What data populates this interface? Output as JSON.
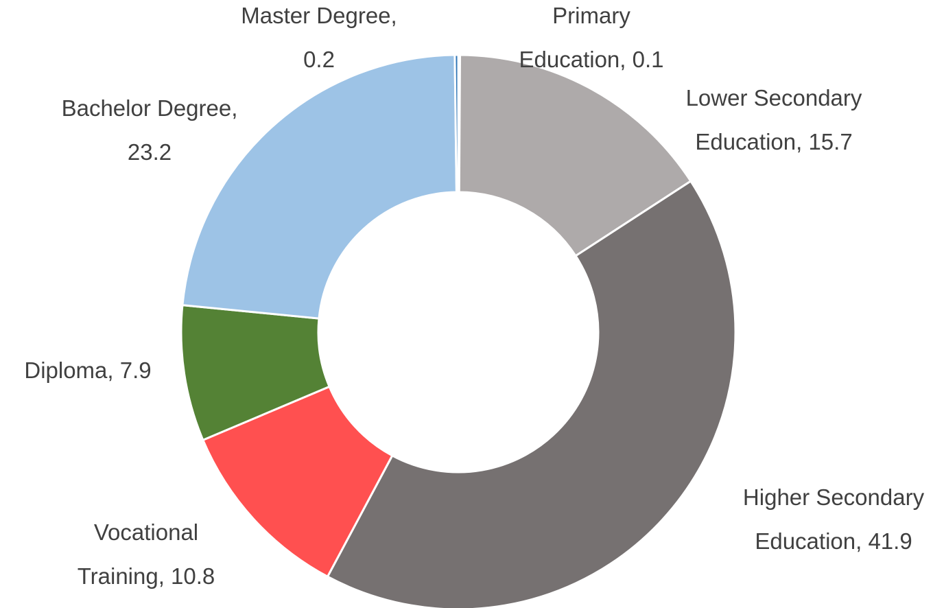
{
  "chart_data": {
    "type": "donut",
    "categories": [
      "Primary Education",
      "Lower Secondary Education",
      "Higher Secondary Education",
      "Vocational Training",
      "Diploma",
      "Bachelor Degree",
      "Master Degree"
    ],
    "values": [
      0.1,
      15.7,
      41.9,
      10.8,
      7.9,
      23.2,
      0.2
    ],
    "value_labels": [
      "Primary Education, 0.1",
      "Lower Secondary Education, 15.7",
      "Higher Secondary Education, 41.9",
      "Vocational Training, 10.8",
      "Diploma, 7.9",
      "Bachelor Degree, 23.2",
      "Master Degree, 0.2"
    ],
    "colors": [
      "#5b6f86",
      "#aeaaaa",
      "#767171",
      "#ff5050",
      "#548235",
      "#9dc3e6",
      "#2e75b6"
    ]
  }
}
